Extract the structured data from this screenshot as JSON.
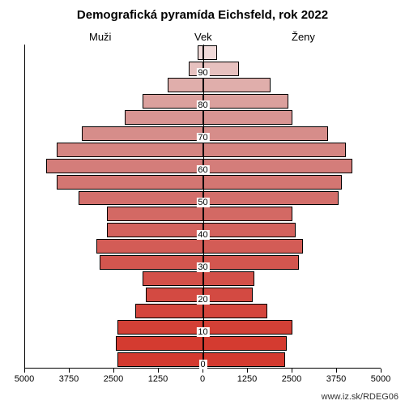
{
  "title": "Demografická pyramída Eichsfeld, rok 2022",
  "labels": {
    "men": "Muži",
    "age": "Vek",
    "women": "Ženy"
  },
  "url": "www.iz.sk/RDEG06",
  "chart": {
    "type": "population-pyramid",
    "background_color": "#ffffff",
    "axis_color": "#000000",
    "bar_border_color": "#000000",
    "title_fontsize": 15,
    "label_fontsize": 13,
    "tick_fontsize": 11,
    "x_max": 5000,
    "x_ticks_left": [
      5000,
      3750,
      2500,
      1250,
      0
    ],
    "x_ticks_right": [
      0,
      1250,
      2500,
      3750,
      5000
    ],
    "y_tick_labels": [
      0,
      10,
      20,
      30,
      40,
      50,
      60,
      70,
      80,
      90
    ],
    "age_groups": [
      {
        "age": 0,
        "men": 2400,
        "women": 2300,
        "men_color": "#d43a2f",
        "women_color": "#d43a2f"
      },
      {
        "age": 5,
        "men": 2450,
        "women": 2350,
        "men_color": "#d43b30",
        "women_color": "#d43b30"
      },
      {
        "age": 10,
        "men": 2400,
        "women": 2500,
        "men_color": "#d34036",
        "women_color": "#d34036"
      },
      {
        "age": 15,
        "men": 1900,
        "women": 1800,
        "men_color": "#d4453c",
        "women_color": "#d4453c"
      },
      {
        "age": 20,
        "men": 1600,
        "women": 1400,
        "men_color": "#d34a42",
        "women_color": "#d34a42"
      },
      {
        "age": 25,
        "men": 1700,
        "women": 1450,
        "men_color": "#d35049",
        "women_color": "#d35049"
      },
      {
        "age": 30,
        "men": 2900,
        "women": 2700,
        "men_color": "#d3564f",
        "women_color": "#d3564f"
      },
      {
        "age": 35,
        "men": 3000,
        "women": 2800,
        "men_color": "#d35c56",
        "women_color": "#d35c56"
      },
      {
        "age": 40,
        "men": 2700,
        "women": 2600,
        "men_color": "#d3625d",
        "women_color": "#d3625d"
      },
      {
        "age": 45,
        "men": 2700,
        "women": 2500,
        "men_color": "#d36964",
        "women_color": "#d36964"
      },
      {
        "age": 50,
        "men": 3500,
        "women": 3800,
        "men_color": "#d36f6b",
        "women_color": "#d36f6b"
      },
      {
        "age": 55,
        "men": 4100,
        "women": 3900,
        "men_color": "#d37672",
        "women_color": "#d37672"
      },
      {
        "age": 60,
        "men": 4400,
        "women": 4200,
        "men_color": "#d47d7a",
        "women_color": "#d47d7a"
      },
      {
        "age": 65,
        "men": 4100,
        "women": 4000,
        "men_color": "#d58581",
        "women_color": "#d58581"
      },
      {
        "age": 70,
        "men": 3400,
        "women": 3500,
        "men_color": "#d68d8a",
        "women_color": "#d68d8a"
      },
      {
        "age": 75,
        "men": 2200,
        "women": 2500,
        "men_color": "#d89593",
        "women_color": "#d89593"
      },
      {
        "age": 80,
        "men": 1700,
        "women": 2400,
        "men_color": "#dba09d",
        "women_color": "#dba09d"
      },
      {
        "age": 85,
        "men": 1000,
        "women": 1900,
        "men_color": "#e0aeab",
        "women_color": "#e0aeab"
      },
      {
        "age": 90,
        "men": 400,
        "women": 1000,
        "men_color": "#e7c1bf",
        "women_color": "#e7c1bf"
      },
      {
        "age": 95,
        "men": 150,
        "women": 400,
        "men_color": "#f1dad9",
        "women_color": "#f1dad9"
      }
    ]
  }
}
